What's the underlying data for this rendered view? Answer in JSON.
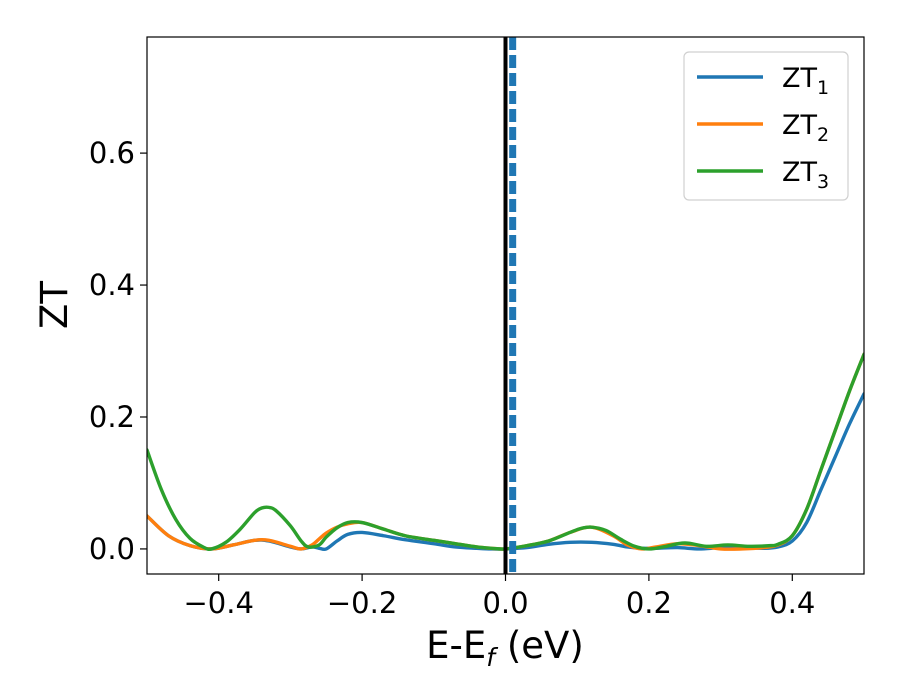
{
  "chart_data": {
    "type": "line",
    "xlabel": "E-E",
    "xlabel_sub": "f",
    "xlabel_unit": " (eV)",
    "ylabel": "ZT",
    "xlim": [
      -0.5,
      0.5
    ],
    "ylim": [
      -0.038,
      0.776
    ],
    "xticks": [
      -0.4,
      -0.2,
      0.0,
      0.2,
      0.4
    ],
    "xtick_labels": [
      "−0.4",
      "−0.2",
      "0.0",
      "0.2",
      "0.4"
    ],
    "yticks": [
      0.0,
      0.2,
      0.4,
      0.6
    ],
    "ytick_labels": [
      "0.0",
      "0.2",
      "0.4",
      "0.6"
    ],
    "grid": false,
    "legend_position": "top-right",
    "vlines": [
      {
        "x": 0.0,
        "color": "#000000",
        "style": "solid"
      },
      {
        "x": 0.01,
        "color": "#1f77b4",
        "style": "dashed"
      }
    ],
    "series": [
      {
        "name": "ZT",
        "name_sub": "1",
        "color": "#1f77b4",
        "x": [
          -0.5,
          -0.47,
          -0.44,
          -0.41,
          -0.38,
          -0.35,
          -0.33,
          -0.3,
          -0.285,
          -0.27,
          -0.26,
          -0.25,
          -0.235,
          -0.22,
          -0.2,
          -0.17,
          -0.14,
          -0.1,
          -0.07,
          -0.04,
          -0.02,
          0.0,
          0.03,
          0.06,
          0.09,
          0.12,
          0.15,
          0.17,
          0.19,
          0.21,
          0.24,
          0.27,
          0.3,
          0.33,
          0.36,
          0.38,
          0.4,
          0.42,
          0.44,
          0.46,
          0.48,
          0.5
        ],
        "y": [
          0.05,
          0.02,
          0.005,
          0.0,
          0.006,
          0.013,
          0.012,
          0.003,
          0.0,
          0.003,
          0.001,
          0.0,
          0.012,
          0.022,
          0.025,
          0.02,
          0.014,
          0.008,
          0.003,
          0.001,
          0.0,
          0.0,
          0.002,
          0.007,
          0.01,
          0.01,
          0.007,
          0.003,
          0.001,
          0.001,
          0.002,
          0.0,
          0.002,
          0.002,
          0.001,
          0.003,
          0.012,
          0.04,
          0.09,
          0.14,
          0.19,
          0.235
        ]
      },
      {
        "name": "ZT",
        "name_sub": "2",
        "color": "#ff7f0e",
        "x": [
          -0.5,
          -0.47,
          -0.44,
          -0.41,
          -0.38,
          -0.35,
          -0.33,
          -0.3,
          -0.285,
          -0.27,
          -0.26,
          -0.25,
          -0.235,
          -0.22,
          -0.2,
          -0.17,
          -0.14,
          -0.1,
          -0.07,
          -0.04,
          -0.02,
          0.0,
          0.03,
          0.06,
          0.09,
          0.12,
          0.15,
          0.17,
          0.19,
          0.21,
          0.24,
          0.27,
          0.3,
          0.33,
          0.36,
          0.38,
          0.4,
          0.42,
          0.44,
          0.46,
          0.48,
          0.5
        ],
        "y": [
          0.05,
          0.02,
          0.005,
          0.0,
          0.006,
          0.013,
          0.013,
          0.004,
          0.0,
          0.006,
          0.015,
          0.024,
          0.033,
          0.038,
          0.04,
          0.03,
          0.02,
          0.013,
          0.008,
          0.003,
          0.001,
          0.0,
          0.005,
          0.012,
          0.025,
          0.033,
          0.02,
          0.006,
          0.0,
          0.003,
          0.008,
          0.005,
          0.0,
          0.0,
          0.002,
          0.006,
          0.02,
          0.06,
          0.12,
          0.18,
          0.24,
          0.295
        ]
      },
      {
        "name": "ZT",
        "name_sub": "3",
        "color": "#2ca02c",
        "x": [
          -0.5,
          -0.48,
          -0.46,
          -0.44,
          -0.42,
          -0.41,
          -0.39,
          -0.37,
          -0.35,
          -0.34,
          -0.33,
          -0.32,
          -0.3,
          -0.285,
          -0.275,
          -0.26,
          -0.25,
          -0.235,
          -0.22,
          -0.2,
          -0.17,
          -0.14,
          -0.1,
          -0.07,
          -0.04,
          -0.02,
          0.0,
          0.03,
          0.06,
          0.09,
          0.105,
          0.12,
          0.14,
          0.16,
          0.18,
          0.2,
          0.22,
          0.25,
          0.28,
          0.31,
          0.34,
          0.37,
          0.38,
          0.4,
          0.42,
          0.44,
          0.46,
          0.48,
          0.5
        ],
        "y": [
          0.15,
          0.09,
          0.045,
          0.016,
          0.002,
          0.0,
          0.01,
          0.03,
          0.055,
          0.062,
          0.063,
          0.058,
          0.035,
          0.012,
          0.003,
          0.006,
          0.018,
          0.032,
          0.04,
          0.04,
          0.03,
          0.02,
          0.013,
          0.008,
          0.003,
          0.001,
          0.0,
          0.005,
          0.012,
          0.025,
          0.031,
          0.033,
          0.028,
          0.015,
          0.004,
          0.0,
          0.003,
          0.009,
          0.004,
          0.006,
          0.004,
          0.005,
          0.007,
          0.02,
          0.06,
          0.12,
          0.18,
          0.24,
          0.295
        ]
      }
    ]
  }
}
